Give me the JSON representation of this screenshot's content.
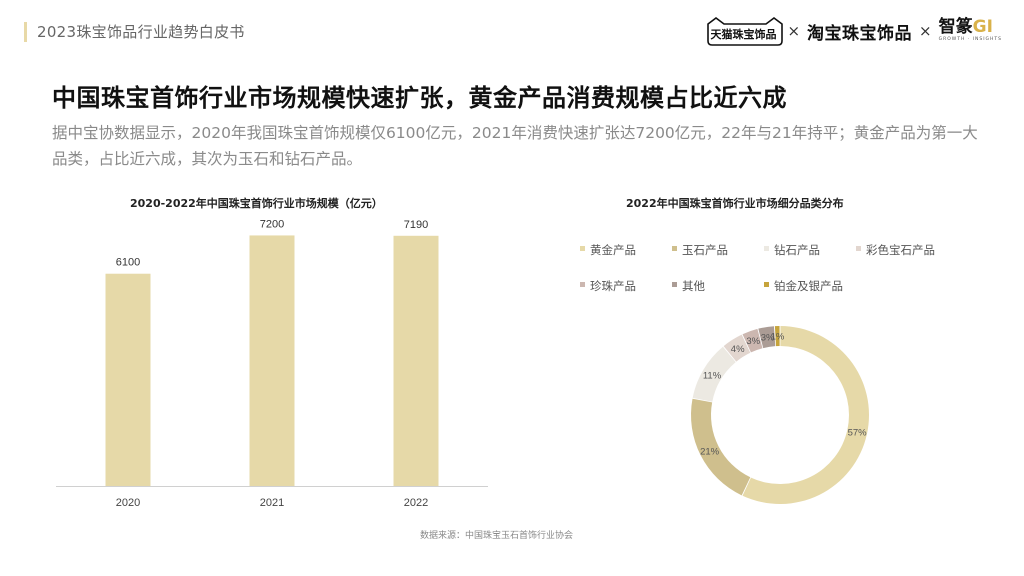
{
  "header": {
    "title": "2023珠宝饰品行业趋势白皮书",
    "logo_tmall": "天猫珠宝饰品",
    "logo_x1": "×",
    "logo_taobao": "淘宝珠宝饰品",
    "logo_x2": "×",
    "logo_zhi": "智篆",
    "logo_gi": "GI",
    "logo_zhi_sub": "GROWTH · INSIGHTS"
  },
  "main": {
    "title": "中国珠宝首饰行业市场规模快速扩张，黄金产品消费规模占比近六成",
    "subtitle": "据中宝协数据显示，2020年我国珠宝首饰规模仅6100亿元，2021年消费快速扩张达7200亿元，22年与21年持平；黄金产品为第一大品类，占比近六成，其次为玉石和钻石产品。"
  },
  "chart_data": [
    {
      "type": "bar",
      "title": "2020-2022年中国珠宝首饰行业市场规模（亿元）",
      "categories": [
        "2020",
        "2021",
        "2022"
      ],
      "values": [
        6100,
        7200,
        7190
      ],
      "data_labels": [
        "6100",
        "7200",
        "7190"
      ],
      "ylim": [
        0,
        7500
      ],
      "grid": false,
      "color": "#e6d9a8"
    },
    {
      "type": "pie",
      "subtype": "donut",
      "title": "2022年中国珠宝首饰行业市场细分品类分布",
      "legend_position": "top",
      "slices": [
        {
          "name": "黄金产品",
          "value": 57,
          "label": "57%",
          "color": "#e6d9a8"
        },
        {
          "name": "玉石产品",
          "value": 21,
          "label": "21%",
          "color": "#cfbf8d"
        },
        {
          "name": "钻石产品",
          "value": 11,
          "label": "11%",
          "color": "#ece9e2"
        },
        {
          "name": "彩色宝石产品",
          "value": 4,
          "label": "4%",
          "color": "#e2d6cf"
        },
        {
          "name": "珍珠产品",
          "value": 3,
          "label": "3%",
          "color": "#ccb7b0"
        },
        {
          "name": "其他",
          "value": 3,
          "label": "3%",
          "color": "#ab9c95"
        },
        {
          "name": "铂金及银产品",
          "value": 1,
          "label": "1%",
          "color": "#c6a43c"
        }
      ]
    }
  ],
  "footer": {
    "source": "数据来源：中国珠宝玉石首饰行业协会"
  }
}
